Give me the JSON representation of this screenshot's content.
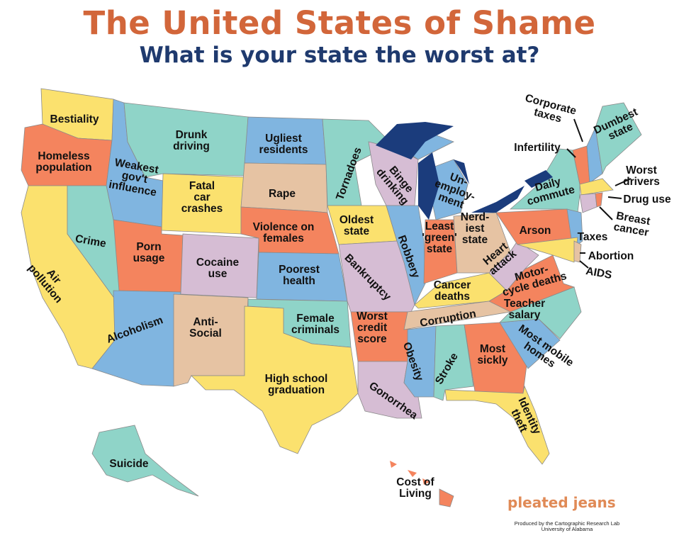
{
  "header": {
    "title": "The United States of Shame",
    "subtitle": "What is your state the worst at?"
  },
  "colors": {
    "yellow": "#FBE16E",
    "teal": "#8FD4C8",
    "blue": "#80B5E0",
    "orange": "#F4845E",
    "tan": "#E6C3A3",
    "lilac": "#D6BDD4",
    "lakes": "#1B3C7C",
    "title": "#D2663A",
    "subtitle": "#1F3A6E"
  },
  "states": {
    "WA": [
      "Bestiality"
    ],
    "OR": [
      "Homeless",
      "population"
    ],
    "ID": [
      "Weakest",
      "gov't",
      "influence"
    ],
    "MT": [
      "Drunk",
      "driving"
    ],
    "ND": [
      "Ugliest",
      "residents"
    ],
    "MN": [
      "Tornadoes"
    ],
    "WI": [
      "Binge",
      "drinking"
    ],
    "MI": [
      "Un-",
      "employ-",
      "ment"
    ],
    "NY": [
      "Daily",
      "commute"
    ],
    "VT": [
      "Infertility"
    ],
    "NH": [
      "Corporate",
      "taxes"
    ],
    "ME": [
      "Dumbest",
      "state"
    ],
    "MA": [
      "Worst",
      "drivers"
    ],
    "RI": [
      "Drug use"
    ],
    "CT": [
      "Breast",
      "cancer"
    ],
    "NJ": [
      "Taxes"
    ],
    "DE": [
      "Abortion"
    ],
    "MD": [
      "AIDS"
    ],
    "PA": [
      "Arson"
    ],
    "NV": [
      "Crime"
    ],
    "CA": [
      "Air",
      "pollution"
    ],
    "WY": [
      "Fatal",
      "car",
      "crashes"
    ],
    "SD": [
      "Rape"
    ],
    "NE": [
      "Violence on",
      "females"
    ],
    "IA": [
      "Oldest",
      "state"
    ],
    "UT": [
      "Porn",
      "usage"
    ],
    "CO": [
      "Cocaine",
      "use"
    ],
    "KS": [
      "Poorest",
      "health"
    ],
    "IL": [
      "Robbery"
    ],
    "MO": [
      "Bankruptcy"
    ],
    "IN": [
      "Least",
      "'green'",
      "state"
    ],
    "OH": [
      "Nerd-",
      "iest",
      "state"
    ],
    "WV": [
      "Heart",
      "attack"
    ],
    "VA": [
      "Motor-",
      "cycle deaths"
    ],
    "KY": [
      "Cancer",
      "deaths"
    ],
    "TN": [
      "Corruption"
    ],
    "NC": [
      "Teacher",
      "salary"
    ],
    "SC": [
      "Most mobile",
      "homes"
    ],
    "AZ": [
      "Alcoholism"
    ],
    "NM": [
      "Anti-",
      "Social"
    ],
    "OK": [
      "Female",
      "criminals"
    ],
    "AR": [
      "Worst",
      "credit",
      "score"
    ],
    "MS": [
      "Obesity"
    ],
    "AL": [
      "Stroke"
    ],
    "GA": [
      "Most",
      "sickly"
    ],
    "TX": [
      "High school",
      "graduation"
    ],
    "LA": [
      "Gonorrhea"
    ],
    "FL": [
      "Identity",
      "theft"
    ],
    "AK": [
      "Suicide"
    ],
    "HI": [
      "Cost of",
      "Living"
    ]
  },
  "credits": {
    "brand": "pleated jeans",
    "line1": "Produced by the Cartographic Research Lab",
    "line2": "University of Alabama"
  }
}
